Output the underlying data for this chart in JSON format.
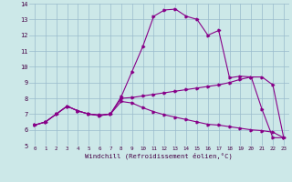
{
  "xlabel": "Windchill (Refroidissement éolien,°C)",
  "background_color": "#cce8e8",
  "line_color": "#880088",
  "xlim": [
    -0.5,
    23.5
  ],
  "ylim": [
    5,
    14
  ],
  "xticks": [
    0,
    1,
    2,
    3,
    4,
    5,
    6,
    7,
    8,
    9,
    10,
    11,
    12,
    13,
    14,
    15,
    16,
    17,
    18,
    19,
    20,
    21,
    22,
    23
  ],
  "yticks": [
    5,
    6,
    7,
    8,
    9,
    10,
    11,
    12,
    13,
    14
  ],
  "curve1_x": [
    0,
    1,
    2,
    3,
    4,
    5,
    6,
    7,
    8,
    9,
    10,
    11,
    12,
    13,
    14,
    15,
    16,
    17,
    18,
    19,
    20,
    21,
    22,
    23
  ],
  "curve1_y": [
    6.3,
    6.5,
    7.0,
    7.5,
    7.2,
    7.0,
    6.9,
    7.0,
    8.1,
    9.7,
    11.3,
    13.2,
    13.6,
    13.65,
    13.2,
    13.0,
    12.0,
    12.3,
    9.3,
    9.4,
    9.35,
    7.3,
    5.5,
    5.5
  ],
  "curve2_x": [
    0,
    1,
    2,
    3,
    4,
    5,
    6,
    7,
    8,
    9,
    10,
    11,
    12,
    13,
    14,
    15,
    16,
    17,
    18,
    19,
    20,
    21,
    22,
    23
  ],
  "curve2_y": [
    6.3,
    6.5,
    7.0,
    7.5,
    7.2,
    7.0,
    6.95,
    7.0,
    8.0,
    8.05,
    8.15,
    8.25,
    8.35,
    8.45,
    8.55,
    8.65,
    8.75,
    8.85,
    9.0,
    9.2,
    9.35,
    9.35,
    8.85,
    5.5
  ],
  "curve3_x": [
    0,
    1,
    2,
    3,
    4,
    5,
    6,
    7,
    8,
    9,
    10,
    11,
    12,
    13,
    14,
    15,
    16,
    17,
    18,
    19,
    20,
    21,
    22,
    23
  ],
  "curve3_y": [
    6.3,
    6.5,
    7.0,
    7.5,
    7.2,
    7.0,
    6.9,
    7.0,
    7.8,
    7.7,
    7.4,
    7.15,
    6.95,
    6.8,
    6.65,
    6.5,
    6.35,
    6.3,
    6.2,
    6.1,
    6.0,
    5.95,
    5.85,
    5.5
  ]
}
